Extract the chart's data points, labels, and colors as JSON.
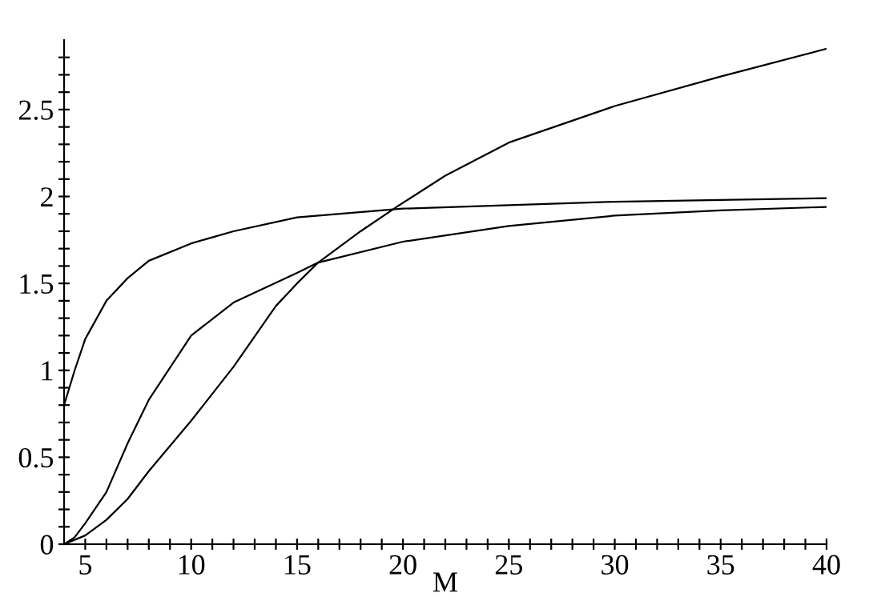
{
  "chart_data": {
    "type": "line",
    "xlabel": "M",
    "xlim": [
      4,
      40
    ],
    "ylim": [
      0,
      2.9
    ],
    "xticks": [
      5,
      {
        "value": 6,
        "label": null
      },
      {
        "value": 7,
        "label": null
      },
      {
        "value": 8,
        "label": null
      },
      {
        "value": 9,
        "label": null
      },
      10,
      {
        "value": 11,
        "label": null
      },
      {
        "value": 12,
        "label": null
      },
      {
        "value": 13,
        "label": null
      },
      {
        "value": 14,
        "label": null
      },
      15,
      {
        "value": 16,
        "label": null
      },
      {
        "value": 17,
        "label": null
      },
      {
        "value": 18,
        "label": null
      },
      {
        "value": 19,
        "label": null
      },
      20,
      {
        "value": 21,
        "label": null
      },
      {
        "value": 22,
        "label": null
      },
      {
        "value": 23,
        "label": null
      },
      {
        "value": 24,
        "label": null
      },
      25,
      {
        "value": 26,
        "label": null
      },
      {
        "value": 27,
        "label": null
      },
      {
        "value": 28,
        "label": null
      },
      {
        "value": 29,
        "label": null
      },
      30,
      {
        "value": 31,
        "label": null
      },
      {
        "value": 32,
        "label": null
      },
      {
        "value": 33,
        "label": null
      },
      {
        "value": 34,
        "label": null
      },
      35,
      {
        "value": 36,
        "label": null
      },
      {
        "value": 37,
        "label": null
      },
      {
        "value": 38,
        "label": null
      },
      {
        "value": 39,
        "label": null
      },
      40
    ],
    "yticks": [
      0,
      {
        "value": 0.1,
        "label": null
      },
      {
        "value": 0.2,
        "label": null
      },
      {
        "value": 0.3,
        "label": null
      },
      {
        "value": 0.4,
        "label": null
      },
      0.5,
      {
        "value": 0.6,
        "label": null
      },
      {
        "value": 0.7,
        "label": null
      },
      {
        "value": 0.8,
        "label": null
      },
      {
        "value": 0.9,
        "label": null
      },
      1,
      {
        "value": 1.1,
        "label": null
      },
      {
        "value": 1.2,
        "label": null
      },
      {
        "value": 1.3,
        "label": null
      },
      {
        "value": 1.4,
        "label": null
      },
      1.5,
      {
        "value": 1.6,
        "label": null
      },
      {
        "value": 1.7,
        "label": null
      },
      {
        "value": 1.8,
        "label": null
      },
      {
        "value": 1.9,
        "label": null
      },
      2,
      {
        "value": 2.1,
        "label": null
      },
      {
        "value": 2.2,
        "label": null
      },
      {
        "value": 2.3,
        "label": null
      },
      {
        "value": 2.4,
        "label": null
      },
      2.5,
      {
        "value": 2.6,
        "label": null
      },
      {
        "value": 2.7,
        "label": null
      },
      {
        "value": 2.8,
        "label": null
      }
    ],
    "grid": false,
    "legend": false,
    "marker": "none",
    "line_style": "solid",
    "series": [
      {
        "color": "#000000",
        "x": [
          4,
          4.5,
          5,
          6,
          7,
          8,
          10,
          12,
          15,
          20,
          25,
          30,
          35,
          40
        ],
        "values": [
          0.8,
          1.0,
          1.18,
          1.4,
          1.53,
          1.63,
          1.73,
          1.8,
          1.88,
          1.93,
          1.95,
          1.97,
          1.98,
          1.99
        ]
      },
      {
        "color": "#000000",
        "x": [
          4,
          4.5,
          5,
          6,
          7,
          8,
          10,
          12,
          15,
          16,
          20,
          25,
          30,
          35,
          40
        ],
        "values": [
          0,
          0.04,
          0.12,
          0.3,
          0.58,
          0.83,
          1.2,
          1.39,
          1.56,
          1.62,
          1.74,
          1.83,
          1.89,
          1.92,
          1.94
        ]
      },
      {
        "color": "#000000",
        "x": [
          4,
          5,
          6,
          7,
          8,
          10,
          12,
          14,
          15,
          16,
          18,
          19.7,
          22,
          25,
          30,
          35,
          40
        ],
        "values": [
          0,
          0.05,
          0.14,
          0.26,
          0.42,
          0.71,
          1.02,
          1.37,
          1.5,
          1.62,
          1.8,
          1.94,
          2.12,
          2.31,
          2.52,
          2.69,
          2.85
        ]
      }
    ]
  }
}
